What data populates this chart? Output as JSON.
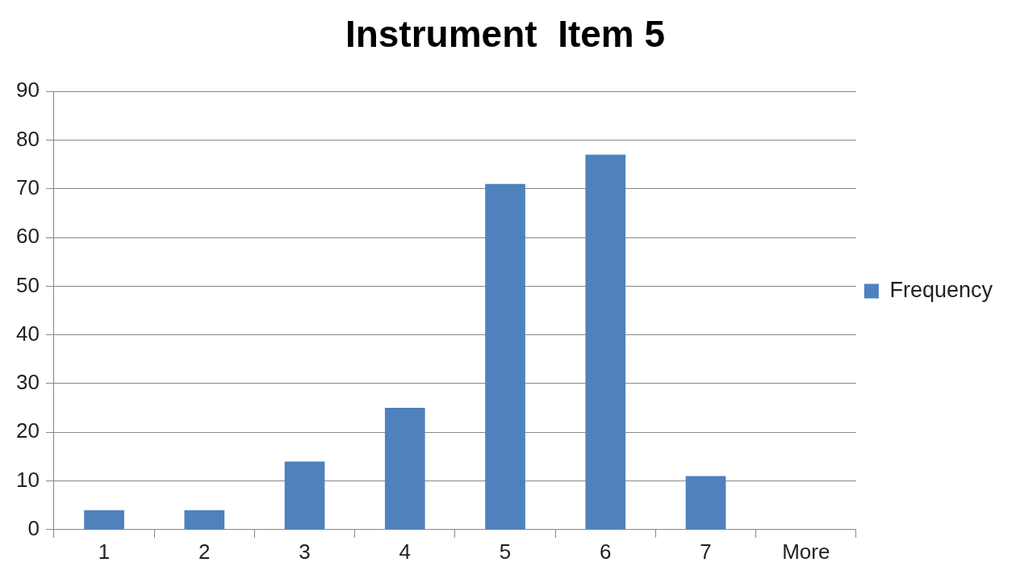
{
  "chart_data": {
    "type": "bar",
    "title": "Instrument  Item 5",
    "categories": [
      "1",
      "2",
      "3",
      "4",
      "5",
      "6",
      "7",
      "More"
    ],
    "series": [
      {
        "name": "Frequency",
        "color": "#4f81bd",
        "values": [
          4,
          4,
          14,
          25,
          71,
          77,
          11,
          0
        ]
      }
    ],
    "ylim": [
      0,
      90
    ],
    "yticks": [
      0,
      10,
      20,
      30,
      40,
      50,
      60,
      70,
      80,
      90
    ],
    "grid": "y",
    "legend": "right"
  }
}
